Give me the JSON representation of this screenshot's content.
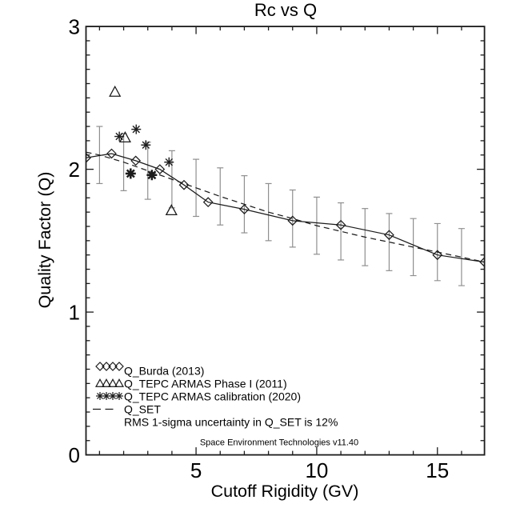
{
  "chart_data": {
    "type": "line",
    "title": "Rc vs Q",
    "xlabel": "Cutoff Rigidity (GV)",
    "ylabel": "Quality Factor (Q)",
    "axes": {
      "x_range": [
        0.44,
        16.95
      ],
      "y_range": [
        0,
        3
      ],
      "x_major_ticks": [
        5,
        10,
        15
      ],
      "x_tick_labels": [
        "5",
        "10",
        "15"
      ],
      "x_minor_step": 1,
      "y_major_ticks": [
        0,
        1,
        2,
        3
      ],
      "y_tick_labels": [
        "0",
        "1",
        "2",
        "3"
      ],
      "y_minor_step": 0.1,
      "grid": false,
      "box_axes": true
    },
    "series": [
      {
        "name": "Q_SET",
        "style": "dashed-line",
        "marker": "none",
        "x": [
          0.44,
          1,
          2,
          3,
          4,
          5,
          6,
          7,
          8,
          9,
          10,
          11,
          12,
          13,
          14,
          15,
          16,
          16.95
        ],
        "q": [
          2.12,
          2.1,
          2.05,
          1.99,
          1.93,
          1.87,
          1.81,
          1.755,
          1.7,
          1.655,
          1.605,
          1.565,
          1.525,
          1.49,
          1.455,
          1.42,
          1.385,
          1.35
        ]
      },
      {
        "name": "Q_SET 1-sigma error bars",
        "style": "error-bars",
        "attached_to": "Q_SET",
        "x": [
          1,
          2,
          3,
          4,
          5,
          6,
          7,
          8,
          9,
          10,
          11,
          12,
          13,
          14,
          15,
          16
        ],
        "q": [
          2.1,
          2.05,
          1.99,
          1.93,
          1.87,
          1.81,
          1.755,
          1.7,
          1.655,
          1.605,
          1.565,
          1.525,
          1.49,
          1.455,
          1.42,
          1.385
        ],
        "halfwidth_q": 0.2
      },
      {
        "name": "Q_Burda (2013)",
        "style": "solid-line",
        "marker": "diamond",
        "x": [
          0.44,
          1.5,
          2.5,
          3.5,
          4.5,
          5.5,
          7,
          9,
          11,
          13,
          15,
          16.95
        ],
        "q": [
          2.08,
          2.11,
          2.06,
          2.0,
          1.89,
          1.77,
          1.72,
          1.64,
          1.61,
          1.54,
          1.4,
          1.35
        ]
      },
      {
        "name": "Q_TEPC ARMAS Phase I (2011)",
        "style": "markers-only",
        "marker": "triangle",
        "points": [
          [
            1.64,
            2.54
          ],
          [
            2.06,
            2.22
          ],
          [
            3.98,
            1.71
          ]
        ]
      },
      {
        "name": "Q_TEPC ARMAS calibration (2020)",
        "style": "markers-only",
        "marker": "asterisk",
        "points": [
          [
            1.82,
            2.23
          ],
          [
            2.52,
            2.28
          ],
          [
            2.92,
            2.17
          ],
          [
            3.88,
            2.05
          ]
        ],
        "bold_points": [
          [
            2.29,
            1.97
          ],
          [
            3.17,
            1.96
          ]
        ]
      }
    ],
    "legend": {
      "position": "bottom-left-inside",
      "rows": [
        {
          "symbol": "diamond-chain",
          "label": "Q_Burda (2013)"
        },
        {
          "symbol": "triangle-chain",
          "label": "Q_TEPC ARMAS Phase I (2011)"
        },
        {
          "symbol": "asterisk-chain",
          "label": "Q_TEPC ARMAS calibration (2020)"
        },
        {
          "symbol": "dash",
          "label": "Q_SET"
        },
        {
          "symbol": "none",
          "label": "RMS 1-sigma uncertainty in Q_SET is 12%"
        }
      ],
      "credit": "Space Environment Technologies v11.40"
    },
    "colors": {
      "background": "#ffffff",
      "line": "#1c1c1c",
      "text": "#000000",
      "error_bar": "#8f8f8f"
    }
  }
}
